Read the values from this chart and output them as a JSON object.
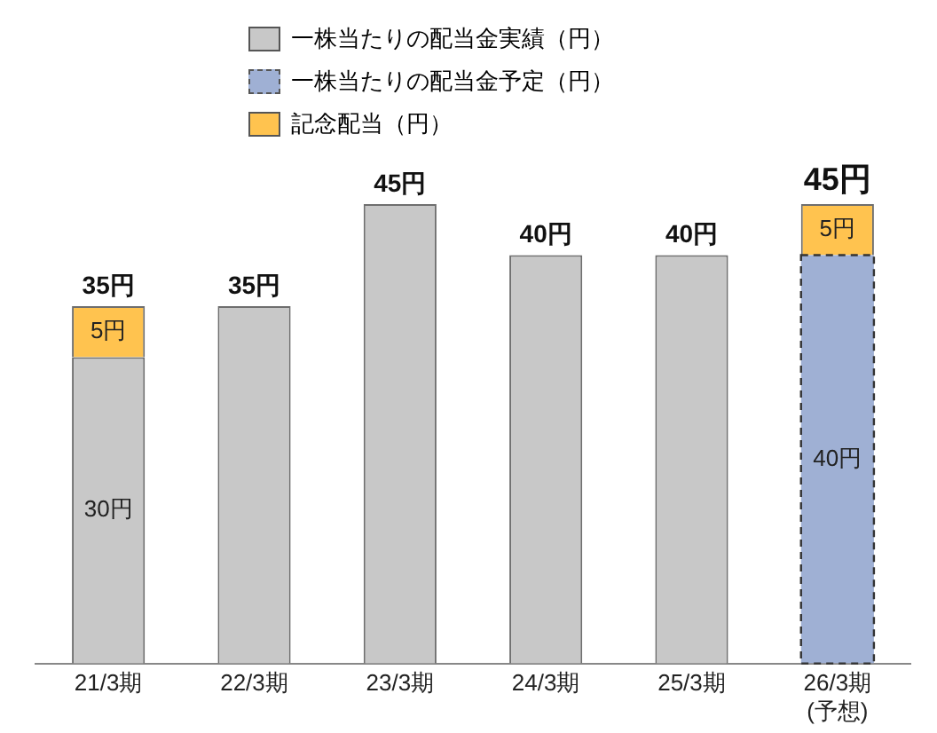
{
  "chart_data": {
    "type": "bar",
    "stacked": true,
    "legend": "top",
    "grid": false,
    "categories": [
      "21/3期",
      "22/3期",
      "23/3期",
      "24/3期",
      "25/3期",
      "26/3期\n(予想)"
    ],
    "series": [
      {
        "name": "一株当たりの配当金実績（円）",
        "color": "#c8c8c8",
        "values": [
          30,
          35,
          45,
          40,
          40,
          null
        ],
        "value_labels": [
          "30円",
          null,
          null,
          null,
          null,
          null
        ]
      },
      {
        "name": "一株当たりの配当金予定（円）",
        "color": "#9fb0d4",
        "line_style": "dashed",
        "values": [
          null,
          null,
          null,
          null,
          null,
          40
        ],
        "value_labels": [
          null,
          null,
          null,
          null,
          null,
          "40円"
        ]
      },
      {
        "name": "記念配当（円）",
        "color": "#ffc34f",
        "values": [
          5,
          null,
          null,
          null,
          null,
          5
        ],
        "value_labels": [
          "5円",
          null,
          null,
          null,
          null,
          "5円"
        ]
      }
    ],
    "totals": [
      "35円",
      "35円",
      "45円",
      "40円",
      "40円",
      "45円"
    ]
  }
}
